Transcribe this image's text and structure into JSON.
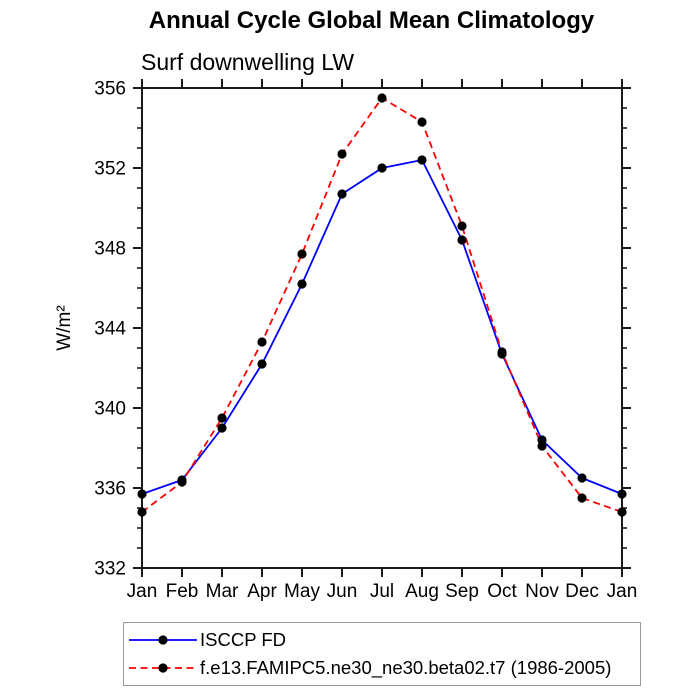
{
  "chart_data": {
    "type": "line",
    "title": "Annual Cycle Global Mean Climatology",
    "subtitle": "Surf downwelling LW",
    "ylabel": "W/m²",
    "xlabel": "",
    "categories": [
      "Jan",
      "Feb",
      "Mar",
      "Apr",
      "May",
      "Jun",
      "Jul",
      "Aug",
      "Sep",
      "Oct",
      "Nov",
      "Dec",
      "Jan"
    ],
    "ylim": [
      332,
      356
    ],
    "y_major_step": 4,
    "y_minor_step": 1,
    "grid": false,
    "legend_position": "bottom-left",
    "axis_color": "#1a1a1a",
    "series": [
      {
        "name": "ISCCP FD",
        "color": "#0000ff",
        "line_style": "solid",
        "marker": "circle",
        "marker_color": "#000000",
        "values": [
          335.7,
          336.4,
          339.0,
          342.2,
          346.2,
          350.7,
          352.0,
          352.4,
          348.4,
          342.7,
          338.4,
          336.5,
          335.7
        ]
      },
      {
        "name": "f.e13.FAMIPC5.ne30_ne30.beta02.t7 (1986-2005)",
        "color": "#ff0000",
        "line_style": "dashed",
        "marker": "circle",
        "marker_color": "#000000",
        "values": [
          334.8,
          336.3,
          339.5,
          343.3,
          347.7,
          352.7,
          355.5,
          354.3,
          349.1,
          342.8,
          338.1,
          335.5,
          334.8
        ]
      }
    ]
  }
}
